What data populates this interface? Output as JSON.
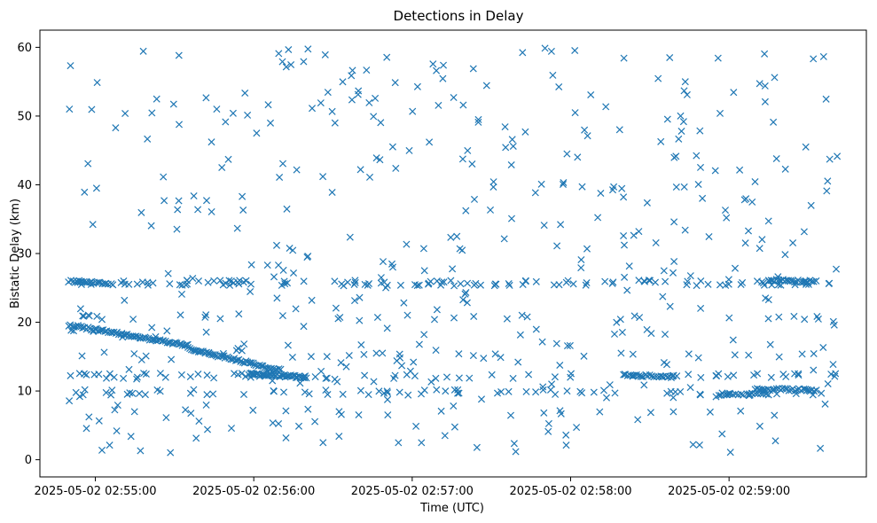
{
  "chart_data": {
    "type": "scatter",
    "title": "Detections in Delay",
    "xlabel": "Time (UTC)",
    "ylabel": "Bistatic Delay (km)",
    "marker": "x",
    "color": "#1f77b4",
    "grid": false,
    "legend": "none",
    "xlim": [
      "2025-05-02 02:54:39",
      "2025-05-02 02:59:52"
    ],
    "ylim": [
      -2.5,
      62.5
    ],
    "x_ticks": [
      "2025-05-02 02:55:00",
      "2025-05-02 02:56:00",
      "2025-05-02 02:57:00",
      "2025-05-02 02:58:00",
      "2025-05-02 02:59:00"
    ],
    "y_ticks": [
      0,
      10,
      20,
      30,
      40,
      50,
      60
    ],
    "tracks": [
      {
        "from": "2025-05-02 02:54:50",
        "to": "2025-05-02 02:55:35",
        "delay_start": 19.6,
        "delay_end": 16.6,
        "points": 70
      },
      {
        "from": "2025-05-02 02:55:35",
        "to": "2025-05-02 02:56:10",
        "delay_start": 16.2,
        "delay_end": 13.0,
        "points": 55
      },
      {
        "from": "2025-05-02 02:55:58",
        "to": "2025-05-02 02:56:20",
        "delay_start": 12.5,
        "delay_end": 12.0,
        "points": 45
      },
      {
        "from": "2025-05-02 02:54:50",
        "to": "2025-05-02 02:55:05",
        "delay_start": 26.0,
        "delay_end": 25.7,
        "points": 20
      },
      {
        "from": "2025-05-02 02:59:15",
        "to": "2025-05-02 02:59:33",
        "delay_start": 26.1,
        "delay_end": 25.9,
        "points": 25
      },
      {
        "from": "2025-05-02 02:59:10",
        "to": "2025-05-02 02:59:33",
        "delay_start": 10.3,
        "delay_end": 10.1,
        "points": 30
      },
      {
        "from": "2025-05-02 02:58:20",
        "to": "2025-05-02 02:58:40",
        "delay_start": 12.3,
        "delay_end": 12.1,
        "points": 25
      },
      {
        "from": "2025-05-02 02:58:55",
        "to": "2025-05-02 02:59:15",
        "delay_start": 9.3,
        "delay_end": 9.6,
        "points": 20
      }
    ],
    "clutter_bands": [
      {
        "delay": 25.7,
        "points": 120
      },
      {
        "delay": 12.2,
        "points": 70
      },
      {
        "delay": 9.8,
        "points": 70
      },
      {
        "delay": 20.7,
        "points": 25
      },
      {
        "delay": 15.2,
        "points": 20
      },
      {
        "delay": 6.9,
        "points": 15
      }
    ],
    "scattered_points": {
      "count": 430,
      "delay_range": [
        1,
        60
      ]
    }
  }
}
